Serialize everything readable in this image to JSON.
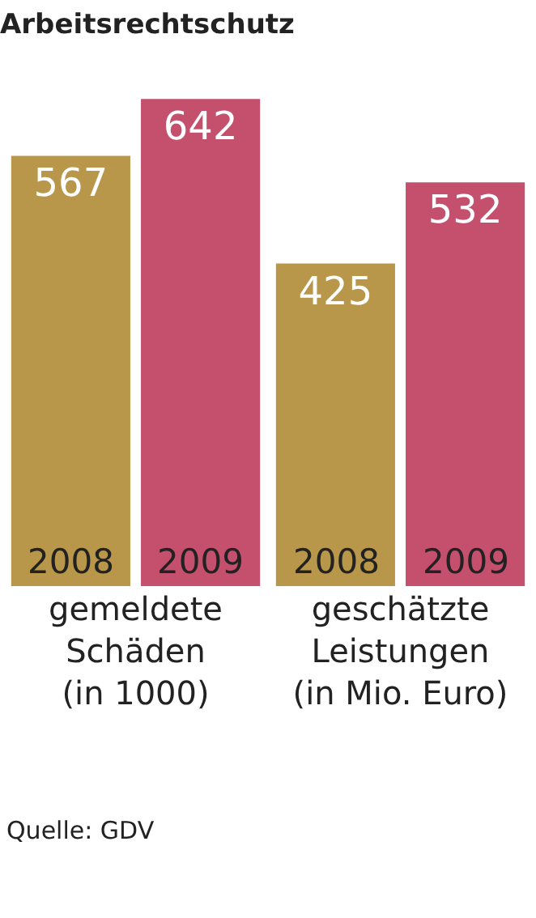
{
  "chart_data": {
    "type": "bar",
    "title": "Arbeitsrechtschutz",
    "categories": [
      "gemeldete\nSchäden\n(in 1000)",
      "geschätzte\nLeistungen\n(in Mio. Euro)"
    ],
    "series": [
      {
        "name": "2008",
        "color": "#b8964a",
        "values": [
          567,
          425
        ]
      },
      {
        "name": "2009",
        "color": "#c4506e",
        "values": [
          642,
          532
        ]
      }
    ],
    "data_labels": true,
    "legend": false,
    "annotations": [
      "Quelle: GDV"
    ]
  }
}
